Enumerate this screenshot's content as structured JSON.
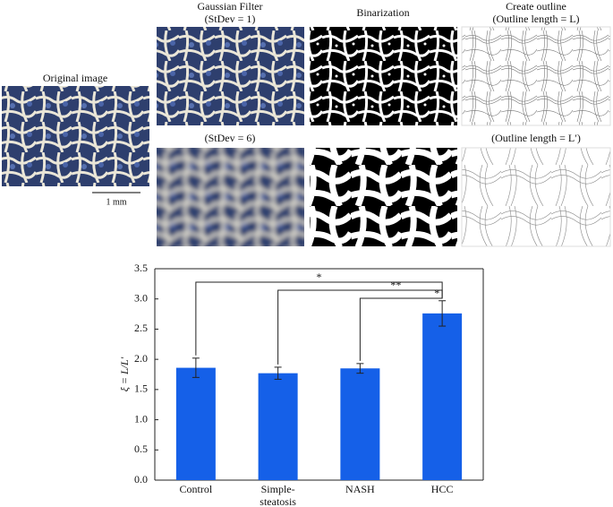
{
  "panels": {
    "original": "Original image",
    "scale": "1 mm",
    "gaussian_title": "Gaussian Filter",
    "gaussian_sd1": "(StDev = 1)",
    "gaussian_sd6": "(StDev = 6)",
    "binarization": "Binarization",
    "outline_title": "Create outline",
    "outline_L": "(Outline length = L)",
    "outline_L2": "(Outline length = L′)"
  },
  "chart_data": {
    "type": "bar",
    "ylabel": "ξ = L/L′",
    "categories": [
      "Control",
      "Simple-steatosis",
      "NASH",
      "HCC"
    ],
    "values": [
      1.86,
      1.77,
      1.85,
      2.76
    ],
    "errors": [
      0.16,
      0.1,
      0.08,
      0.21
    ],
    "color": "#1560e8",
    "ylim": [
      0,
      3.5
    ],
    "yticks": [
      {
        "value": 0,
        "label": "0.0"
      },
      0.5,
      {
        "value": 1,
        "label": "1.0"
      },
      1.5,
      {
        "value": 2,
        "label": "2.0"
      },
      2.5,
      {
        "value": 3,
        "label": "3.0"
      },
      3.5
    ],
    "significance": [
      {
        "from": 0,
        "to": 3,
        "label": "*"
      },
      {
        "from": 1,
        "to": 3,
        "label": "**"
      },
      {
        "from": 2,
        "to": 3,
        "label": "*"
      }
    ]
  }
}
